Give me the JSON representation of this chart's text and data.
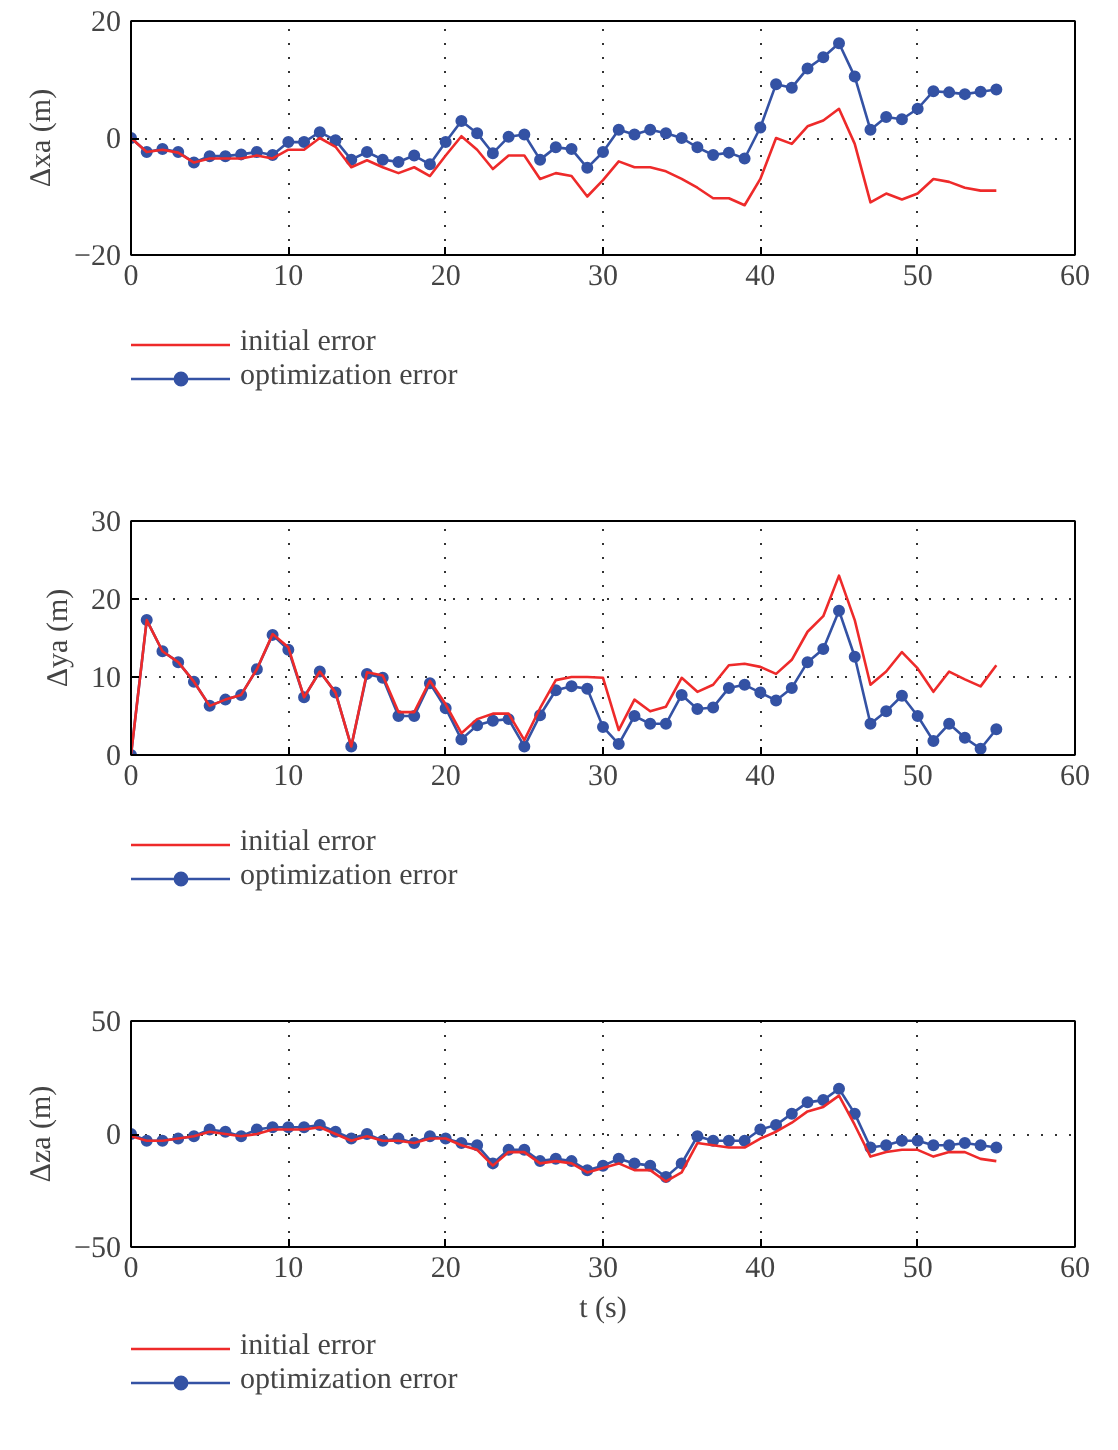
{
  "chart_data": [
    {
      "type": "line",
      "ylabel": "Δxa (m)",
      "x": [
        0,
        1,
        2,
        3,
        4,
        5,
        6,
        7,
        8,
        9,
        10,
        11,
        12,
        13,
        14,
        15,
        16,
        17,
        18,
        19,
        20,
        21,
        22,
        23,
        24,
        25,
        26,
        27,
        28,
        29,
        30,
        31,
        32,
        33,
        34,
        35,
        36,
        37,
        38,
        39,
        40,
        41,
        42,
        43,
        44,
        45,
        46,
        47,
        48,
        49,
        50,
        51,
        52,
        53,
        54,
        55
      ],
      "xlim": [
        0,
        60
      ],
      "xticks": [
        0,
        10,
        20,
        30,
        40,
        50,
        60
      ],
      "ylim": [
        -20,
        20
      ],
      "yticks": [
        -20,
        0,
        20
      ],
      "grid": true,
      "legend": "bottom",
      "line_style": "solid",
      "series": [
        {
          "name": "initial error",
          "color": "#ee2a2a",
          "marker": "none",
          "values": [
            0,
            -2.4,
            -2,
            -2.5,
            -4.2,
            -3.5,
            -3.5,
            -3.5,
            -3,
            -3.5,
            -2,
            -2,
            0,
            -1.5,
            -5,
            -3.8,
            -5,
            -6,
            -5,
            -6.5,
            -3,
            0.3,
            -2,
            -5.3,
            -3,
            -3,
            -7,
            -6,
            -6.5,
            -10,
            -7.2,
            -4,
            -5,
            -5,
            -5.7,
            -7,
            -8.5,
            -10.3,
            -10.3,
            -11.5,
            -7,
            0,
            -1,
            2,
            3,
            5,
            -1,
            -11,
            -9.5,
            -10.5,
            -9.5,
            -7,
            -7.5,
            -8.5,
            -9,
            -9
          ]
        },
        {
          "name": "optimization error",
          "color": "#3452a4",
          "marker": "circle",
          "values": [
            0,
            -2.4,
            -1.9,
            -2.4,
            -4.2,
            -3.1,
            -3.1,
            -2.8,
            -2.4,
            -2.9,
            -0.7,
            -0.7,
            1,
            -0.4,
            -3.7,
            -2.4,
            -3.7,
            -4.1,
            -3,
            -4.5,
            -0.7,
            2.9,
            0.8,
            -2.6,
            0.2,
            0.6,
            -3.7,
            -1.6,
            -1.9,
            -5.1,
            -2.4,
            1.4,
            0.6,
            1.4,
            0.8,
            0,
            -1.6,
            -2.9,
            -2.5,
            -3.5,
            1.8,
            9.2,
            8.6,
            11.9,
            13.8,
            16.2,
            10.5,
            1.4,
            3.6,
            3.2,
            5,
            8,
            7.8,
            7.5,
            7.9,
            8.3
          ]
        }
      ]
    },
    {
      "type": "line",
      "ylabel": "Δya (m)",
      "x": [
        0,
        1,
        2,
        3,
        4,
        5,
        6,
        7,
        8,
        9,
        10,
        11,
        12,
        13,
        14,
        15,
        16,
        17,
        18,
        19,
        20,
        21,
        22,
        23,
        24,
        25,
        26,
        27,
        28,
        29,
        30,
        31,
        32,
        33,
        34,
        35,
        36,
        37,
        38,
        39,
        40,
        41,
        42,
        43,
        44,
        45,
        46,
        47,
        48,
        49,
        50,
        51,
        52,
        53,
        54,
        55
      ],
      "xlim": [
        0,
        60
      ],
      "xticks": [
        0,
        10,
        20,
        30,
        40,
        50,
        60
      ],
      "ylim": [
        0,
        30
      ],
      "yticks": [
        0,
        10,
        20,
        30
      ],
      "grid": true,
      "legend": "bottom",
      "line_style": "solid",
      "series": [
        {
          "name": "initial error",
          "color": "#ee2a2a",
          "marker": "none",
          "values": [
            0,
            17.3,
            13.3,
            11.9,
            9.4,
            6.3,
            7.1,
            7.7,
            11,
            15.5,
            13.8,
            7.4,
            10.7,
            8,
            1.1,
            10.6,
            10.2,
            5.5,
            5.5,
            9.5,
            6.5,
            2.8,
            4.6,
            5.3,
            5.3,
            1.9,
            6,
            9.6,
            10,
            10,
            9.9,
            3.2,
            7.1,
            5.6,
            6.2,
            9.9,
            8.1,
            9,
            11.5,
            11.7,
            11.3,
            10.4,
            12.2,
            15.8,
            17.8,
            23,
            17.3,
            9,
            10.7,
            13.2,
            11.1,
            8.1,
            10.7,
            9.7,
            8.8,
            11.5
          ]
        },
        {
          "name": "optimization error",
          "color": "#3452a4",
          "marker": "circle",
          "values": [
            0,
            17.3,
            13.3,
            11.9,
            9.4,
            6.3,
            7.1,
            7.7,
            11,
            15.4,
            13.5,
            7.4,
            10.7,
            8,
            1.1,
            10.4,
            9.9,
            5,
            5,
            9.2,
            6,
            2,
            3.8,
            4.4,
            4.6,
            1.1,
            5.1,
            8.3,
            8.8,
            8.5,
            3.6,
            1.4,
            5,
            4,
            4,
            7.7,
            5.9,
            6.1,
            8.6,
            9,
            8,
            7,
            8.6,
            11.9,
            13.6,
            18.5,
            12.6,
            4,
            5.6,
            7.6,
            5,
            1.8,
            4,
            2.2,
            0.8,
            3.3
          ]
        }
      ]
    },
    {
      "type": "line",
      "ylabel": "Δza (m)",
      "xlabel": "t (s)",
      "x": [
        0,
        1,
        2,
        3,
        4,
        5,
        6,
        7,
        8,
        9,
        10,
        11,
        12,
        13,
        14,
        15,
        16,
        17,
        18,
        19,
        20,
        21,
        22,
        23,
        24,
        25,
        26,
        27,
        28,
        29,
        30,
        31,
        32,
        33,
        34,
        35,
        36,
        37,
        38,
        39,
        40,
        41,
        42,
        43,
        44,
        45,
        46,
        47,
        48,
        49,
        50,
        51,
        52,
        53,
        54,
        55
      ],
      "xlim": [
        0,
        60
      ],
      "xticks": [
        0,
        10,
        20,
        30,
        40,
        50,
        60
      ],
      "ylim": [
        -50,
        50
      ],
      "yticks": [
        -50,
        0,
        50
      ],
      "grid": true,
      "legend": "bottom",
      "line_style": "solid",
      "series": [
        {
          "name": "initial error",
          "color": "#ee2a2a",
          "marker": "none",
          "values": [
            -1,
            -3,
            -3,
            -2,
            -1,
            1,
            0,
            -1,
            0,
            2,
            2,
            2,
            3,
            0,
            -3,
            -1,
            -3,
            -3,
            -4,
            -2,
            -2,
            -5,
            -7,
            -14,
            -8,
            -8,
            -13,
            -12,
            -13,
            -17,
            -15,
            -13,
            -16,
            -16,
            -21,
            -17,
            -4,
            -5,
            -6,
            -6,
            -2,
            1,
            5,
            10,
            12,
            17,
            4,
            -10,
            -8,
            -7,
            -7,
            -10,
            -8,
            -8,
            -11,
            -12
          ]
        },
        {
          "name": "optimization error",
          "color": "#3452a4",
          "marker": "circle",
          "values": [
            0,
            -3,
            -3,
            -2,
            -1,
            2,
            1,
            -1,
            2,
            3,
            3,
            3,
            4,
            1,
            -2,
            0,
            -3,
            -2,
            -4,
            -1,
            -2,
            -4,
            -5,
            -13,
            -7,
            -7,
            -12,
            -11,
            -12,
            -16,
            -14,
            -11,
            -13,
            -14,
            -19,
            -13,
            -1,
            -3,
            -3,
            -3,
            2,
            4,
            9,
            14,
            15,
            20,
            9,
            -6,
            -5,
            -3,
            -3,
            -5,
            -5,
            -4,
            -5,
            -6
          ]
        }
      ]
    }
  ]
}
